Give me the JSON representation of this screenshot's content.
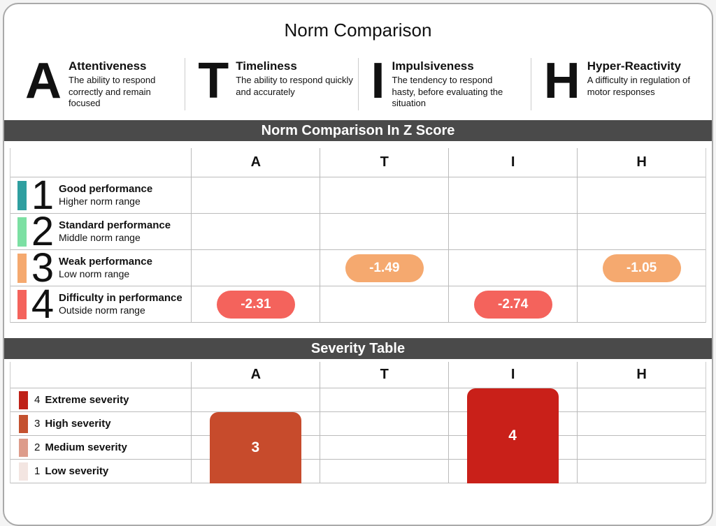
{
  "title": "Norm Comparison",
  "legend": {
    "items": [
      {
        "letter": "A",
        "title": "Attentiveness",
        "description": "The ability to respond correctly and remain focused"
      },
      {
        "letter": "T",
        "title": "Timeliness",
        "description": "The ability to respond quickly and accurately"
      },
      {
        "letter": "I",
        "title": "Impulsiveness",
        "description": "The tendency to respond hasty, before evaluating the situation"
      },
      {
        "letter": "H",
        "title": "Hyper-Reactivity",
        "description": "A difficulty in regulation of motor responses"
      }
    ]
  },
  "z_section": {
    "header": "Norm Comparison In Z Score",
    "columns": [
      "A",
      "T",
      "I",
      "H"
    ],
    "rows": [
      {
        "num": "1",
        "title": "Good performance",
        "subtitle": "Higher norm range",
        "color": "#2f9fa0"
      },
      {
        "num": "2",
        "title": "Standard performance",
        "subtitle": "Middle norm range",
        "color": "#7ce0a3"
      },
      {
        "num": "3",
        "title": "Weak performance",
        "subtitle": "Low norm range",
        "color": "#f5a96f"
      },
      {
        "num": "4",
        "title": "Difficulty in performance",
        "subtitle": "Outside norm range",
        "color": "#f4635c"
      }
    ],
    "scores": {
      "A": {
        "value": "-2.31",
        "row": 4,
        "color": "#f4635c"
      },
      "T": {
        "value": "-1.49",
        "row": 3,
        "color": "#f5a96f"
      },
      "I": {
        "value": "-2.74",
        "row": 4,
        "color": "#f4635c"
      },
      "H": {
        "value": "-1.05",
        "row": 3,
        "color": "#f5a96f"
      }
    }
  },
  "severity_section": {
    "header": "Severity Table",
    "columns": [
      "A",
      "T",
      "I",
      "H"
    ],
    "rows": [
      {
        "num": "4",
        "label": "Extreme severity",
        "color": "#bf2117"
      },
      {
        "num": "3",
        "label": "High severity",
        "color": "#c4512f"
      },
      {
        "num": "2",
        "label": "Medium severity",
        "color": "#dd9c8b"
      },
      {
        "num": "1",
        "label": "Low severity",
        "color": "#f3e5e1"
      }
    ],
    "bars": {
      "A": {
        "value": "3",
        "color": "#c74b2c"
      },
      "I": {
        "value": "4",
        "color": "#c92019"
      }
    }
  },
  "colors": {
    "section_header_bg": "#4a4a4a",
    "grid_line": "#bbbbbb",
    "card_border": "#a9a9a9"
  },
  "chart_data": [
    {
      "type": "table",
      "title": "Norm Comparison In Z Score",
      "columns": [
        "A",
        "T",
        "I",
        "H"
      ],
      "row_levels": [
        "1 Good performance - Higher norm range",
        "2 Standard performance - Middle norm range",
        "3 Weak performance - Low norm range",
        "4 Difficulty in performance - Outside norm range"
      ],
      "values": {
        "A": -2.31,
        "T": -1.49,
        "I": -2.74,
        "H": -1.05
      },
      "value_levels": {
        "A": 4,
        "T": 3,
        "I": 4,
        "H": 3
      }
    },
    {
      "type": "bar",
      "title": "Severity Table",
      "categories": [
        "A",
        "T",
        "I",
        "H"
      ],
      "values": [
        3,
        null,
        4,
        null
      ],
      "ylabels": [
        "1 Low severity",
        "2 Medium severity",
        "3 High severity",
        "4 Extreme severity"
      ],
      "ylim": [
        0,
        4
      ],
      "legend_position": "left"
    }
  ]
}
